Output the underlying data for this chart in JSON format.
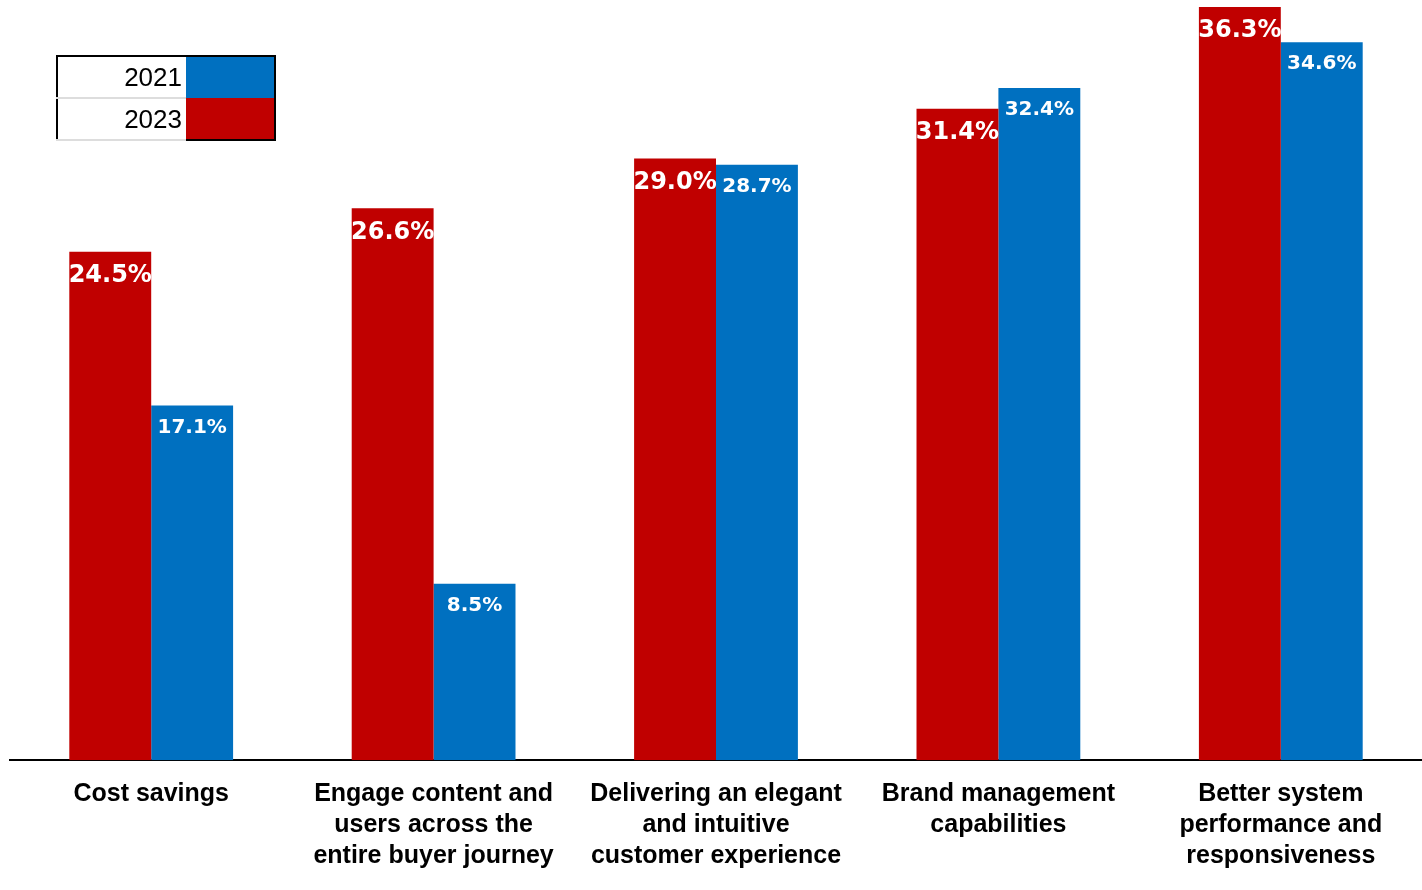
{
  "chart_data": {
    "type": "bar",
    "categories": [
      "Cost savings",
      "Engage content and users across the entire buyer journey",
      "Delivering an elegant and intuitive customer experience",
      "Brand management capabilities",
      "Better system performance and responsiveness"
    ],
    "series": [
      {
        "name": "2023",
        "color": "#c00000",
        "values": [
          24.5,
          26.6,
          29.0,
          31.4,
          36.3
        ],
        "value_labels": [
          "24.5%",
          "26.6%",
          "29.0%",
          "31.4%",
          "36.3%"
        ]
      },
      {
        "name": "2021",
        "color": "#0070c0",
        "values": [
          17.1,
          8.5,
          28.7,
          32.4,
          34.6
        ],
        "value_labels": [
          "17.1%",
          "8.5%",
          "28.7%",
          "32.4%",
          "34.6%"
        ]
      }
    ],
    "grid": false,
    "legend": "top left"
  }
}
